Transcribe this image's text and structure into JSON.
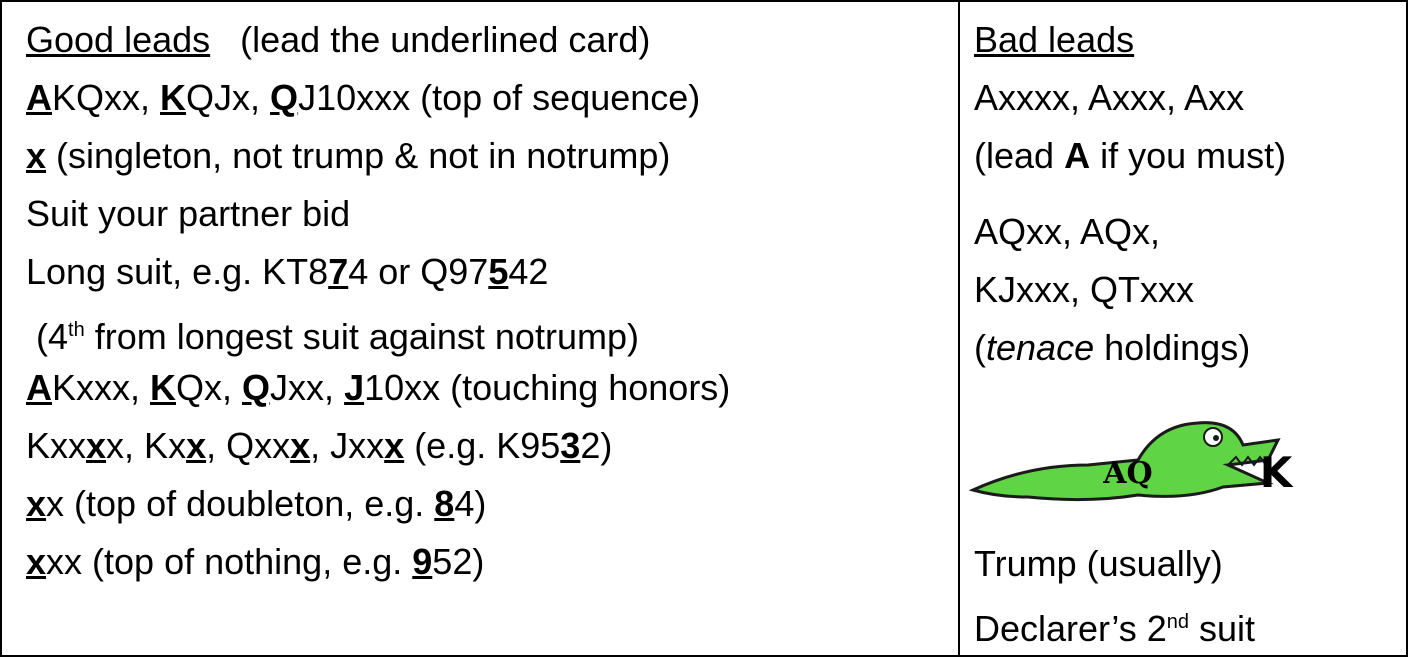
{
  "left": {
    "lines": [
      [
        "Good leads",
        "   (lead the underlined card)"
      ],
      [
        "A",
        "KQxx, ",
        "K",
        "QJx, ",
        "Q",
        "J10xxx (top of sequence)"
      ],
      [
        "x",
        " (singleton, not trump & not in notrump)"
      ],
      [
        "Suit your partner bid"
      ],
      [
        "Long suit, e.g. KT8",
        "7",
        "4 or Q97",
        "5",
        "42"
      ],
      [
        " (4",
        "th",
        " from longest suit against notrump)"
      ],
      [
        "A",
        "Kxxx, ",
        "K",
        "Qx, ",
        "Q",
        "Jxx, ",
        "J",
        "10xx (touching honors)"
      ],
      [
        "Kxx",
        "x",
        "x, Kx",
        "x",
        ", Qxx",
        "x",
        ", Jxx",
        "x",
        " (e.g. K95",
        "3",
        "2)"
      ],
      [
        "x",
        "x (top of doubleton, e.g. ",
        "8",
        "4)"
      ],
      [
        "x",
        "xx (top of nothing, e.g. ",
        "9",
        "52)"
      ]
    ]
  },
  "right": {
    "lines": [
      [
        "Bad leads"
      ],
      [
        "Axxxx, Axxx, Axx"
      ],
      [
        "(lead ",
        "A",
        " if you must)"
      ],
      [
        "AQxx, AQx,"
      ],
      [
        "KJxxx, QTxxx"
      ],
      [
        "(",
        "tenace",
        " holdings)"
      ],
      [
        "Trump (usually)"
      ],
      [
        "Declarer’s 2",
        "nd",
        " suit"
      ]
    ],
    "image": {
      "labels": [
        "AQ",
        "K"
      ]
    }
  }
}
